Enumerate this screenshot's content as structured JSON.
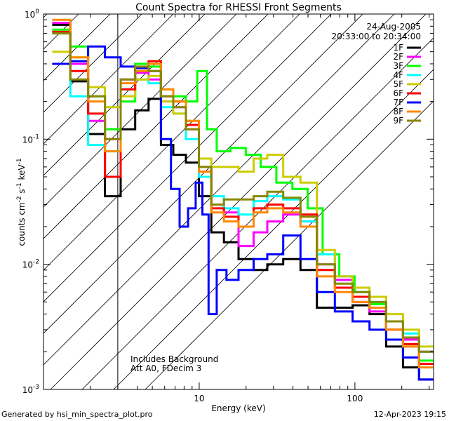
{
  "chart_data": {
    "type": "line",
    "title": "Count Spectra for RHESSI Front Segments",
    "xlabel": "Energy (keV)",
    "ylabel": "counts cm-2 s-1 keV-1",
    "ylabel_parts": {
      "base": "counts cm",
      "e1": "-2",
      "mid1": " s",
      "e2": "-1",
      "mid2": " keV",
      "e3": "-1"
    },
    "xscale": "log",
    "yscale": "log",
    "xlim": [
      1,
      320
    ],
    "ylim": [
      0.001,
      1
    ],
    "x_ticks": [
      {
        "value": 10,
        "label": "10"
      },
      {
        "value": 100,
        "label": "100"
      }
    ],
    "y_ticks": [
      {
        "value": 1,
        "base": "10",
        "exp": "0"
      },
      {
        "value": 0.1,
        "base": "10",
        "exp": "-1"
      },
      {
        "value": 0.01,
        "base": "10",
        "exp": "-2"
      },
      {
        "value": 0.001,
        "base": "10",
        "exp": "-3"
      }
    ],
    "shaded_region_kev": [
      1,
      3
    ],
    "date": "24-Aug-2005",
    "time_range": "20:33:00 to 20:34:00",
    "legend_position": "top-right",
    "annotation_lines": [
      "Includes Background",
      "Att A0, FDecim 3"
    ],
    "series": [
      {
        "name": "1F",
        "color": "#000000",
        "points": [
          [
            1.3,
            0.82
          ],
          [
            1.7,
            0.29
          ],
          [
            2.2,
            0.11
          ],
          [
            2.8,
            0.035
          ],
          [
            3.5,
            0.12
          ],
          [
            4.3,
            0.17
          ],
          [
            5.2,
            0.21
          ],
          [
            6.2,
            0.09
          ],
          [
            7.5,
            0.075
          ],
          [
            9,
            0.065
          ],
          [
            11,
            0.035
          ],
          [
            13,
            0.018
          ],
          [
            16,
            0.015
          ],
          [
            20,
            0.011
          ],
          [
            25,
            0.009
          ],
          [
            30,
            0.01
          ],
          [
            40,
            0.011
          ],
          [
            50,
            0.009
          ],
          [
            65,
            0.0045
          ],
          [
            85,
            0.0045
          ],
          [
            110,
            0.0047
          ],
          [
            140,
            0.004
          ],
          [
            180,
            0.0022
          ],
          [
            230,
            0.0015
          ],
          [
            290,
            0.0012
          ]
        ]
      },
      {
        "name": "2F",
        "color": "#ff00ff",
        "points": [
          [
            1.3,
            0.85
          ],
          [
            1.7,
            0.4
          ],
          [
            2.2,
            0.14
          ],
          [
            2.8,
            0.1
          ],
          [
            3.5,
            0.3
          ],
          [
            4.3,
            0.34
          ],
          [
            5.2,
            0.3
          ],
          [
            6.2,
            0.2
          ],
          [
            7.5,
            0.18
          ],
          [
            9,
            0.12
          ],
          [
            11,
            0.06
          ],
          [
            13,
            0.03
          ],
          [
            16,
            0.026
          ],
          [
            20,
            0.014
          ],
          [
            25,
            0.018
          ],
          [
            30,
            0.022
          ],
          [
            40,
            0.025
          ],
          [
            50,
            0.022
          ],
          [
            65,
            0.01
          ],
          [
            85,
            0.0075
          ],
          [
            110,
            0.005
          ],
          [
            140,
            0.0042
          ],
          [
            180,
            0.003
          ],
          [
            230,
            0.0025
          ],
          [
            290,
            0.002
          ]
        ]
      },
      {
        "name": "3F",
        "color": "#00ff00",
        "points": [
          [
            1.3,
            0.75
          ],
          [
            1.7,
            0.55
          ],
          [
            2.2,
            0.22
          ],
          [
            2.8,
            0.12
          ],
          [
            3.5,
            0.2
          ],
          [
            4.3,
            0.4
          ],
          [
            5.2,
            0.38
          ],
          [
            6.2,
            0.25
          ],
          [
            7.5,
            0.22
          ],
          [
            9,
            0.2
          ],
          [
            10.5,
            0.35
          ],
          [
            12,
            0.12
          ],
          [
            14,
            0.08
          ],
          [
            18,
            0.085
          ],
          [
            22,
            0.075
          ],
          [
            28,
            0.06
          ],
          [
            35,
            0.045
          ],
          [
            45,
            0.04
          ],
          [
            55,
            0.028
          ],
          [
            70,
            0.012
          ],
          [
            90,
            0.008
          ],
          [
            110,
            0.006
          ],
          [
            140,
            0.0048
          ],
          [
            180,
            0.003
          ],
          [
            230,
            0.0022
          ],
          [
            290,
            0.0017
          ]
        ]
      },
      {
        "name": "4F",
        "color": "#00ffff",
        "points": [
          [
            1.3,
            0.7
          ],
          [
            1.7,
            0.22
          ],
          [
            2.2,
            0.09
          ],
          [
            2.8,
            0.08
          ],
          [
            3.5,
            0.25
          ],
          [
            4.3,
            0.3
          ],
          [
            5.2,
            0.28
          ],
          [
            6.2,
            0.18
          ],
          [
            7.5,
            0.16
          ],
          [
            9,
            0.1
          ],
          [
            11,
            0.05
          ],
          [
            13,
            0.035
          ],
          [
            16,
            0.028
          ],
          [
            20,
            0.025
          ],
          [
            25,
            0.032
          ],
          [
            30,
            0.035
          ],
          [
            40,
            0.033
          ],
          [
            50,
            0.022
          ],
          [
            65,
            0.012
          ],
          [
            85,
            0.008
          ],
          [
            110,
            0.006
          ],
          [
            140,
            0.005
          ],
          [
            180,
            0.0035
          ],
          [
            230,
            0.0028
          ],
          [
            290,
            0.002
          ]
        ]
      },
      {
        "name": "5F",
        "color": "#cccc00",
        "points": [
          [
            1.3,
            0.5
          ],
          [
            1.7,
            0.45
          ],
          [
            2.2,
            0.26
          ],
          [
            2.8,
            0.18
          ],
          [
            3.5,
            0.22
          ],
          [
            4.3,
            0.3
          ],
          [
            5.2,
            0.32
          ],
          [
            6.2,
            0.2
          ],
          [
            7.5,
            0.16
          ],
          [
            9,
            0.14
          ],
          [
            11,
            0.07
          ],
          [
            13,
            0.06
          ],
          [
            16,
            0.06
          ],
          [
            20,
            0.055
          ],
          [
            25,
            0.07
          ],
          [
            30,
            0.075
          ],
          [
            40,
            0.05
          ],
          [
            50,
            0.045
          ],
          [
            65,
            0.013
          ],
          [
            85,
            0.008
          ],
          [
            110,
            0.0065
          ],
          [
            140,
            0.0055
          ],
          [
            180,
            0.004
          ],
          [
            230,
            0.003
          ],
          [
            290,
            0.0022
          ]
        ]
      },
      {
        "name": "6F",
        "color": "#ff0000",
        "points": [
          [
            1.3,
            0.72
          ],
          [
            1.7,
            0.35
          ],
          [
            2.2,
            0.16
          ],
          [
            2.8,
            0.05
          ],
          [
            3.5,
            0.25
          ],
          [
            4.3,
            0.35
          ],
          [
            5.2,
            0.42
          ],
          [
            6.2,
            0.22
          ],
          [
            7.5,
            0.2
          ],
          [
            9,
            0.13
          ],
          [
            11,
            0.055
          ],
          [
            13,
            0.028
          ],
          [
            16,
            0.024
          ],
          [
            20,
            0.02
          ],
          [
            25,
            0.028
          ],
          [
            30,
            0.03
          ],
          [
            40,
            0.028
          ],
          [
            50,
            0.025
          ],
          [
            65,
            0.009
          ],
          [
            85,
            0.0065
          ],
          [
            110,
            0.0055
          ],
          [
            140,
            0.0045
          ],
          [
            180,
            0.003
          ],
          [
            230,
            0.0023
          ],
          [
            290,
            0.0016
          ]
        ]
      },
      {
        "name": "7F",
        "color": "#0000ff",
        "points": [
          [
            1.3,
            0.4
          ],
          [
            1.7,
            0.42
          ],
          [
            2.2,
            0.55
          ],
          [
            2.8,
            0.45
          ],
          [
            3.5,
            0.38
          ],
          [
            4.3,
            0.37
          ],
          [
            5.2,
            0.35
          ],
          [
            6.2,
            0.1
          ],
          [
            7,
            0.04
          ],
          [
            8,
            0.02
          ],
          [
            9,
            0.028
          ],
          [
            10,
            0.045
          ],
          [
            11,
            0.025
          ],
          [
            12,
            0.004
          ],
          [
            14,
            0.009
          ],
          [
            16,
            0.0075
          ],
          [
            20,
            0.009
          ],
          [
            25,
            0.011
          ],
          [
            30,
            0.012
          ],
          [
            40,
            0.017
          ],
          [
            50,
            0.011
          ],
          [
            65,
            0.006
          ],
          [
            85,
            0.0042
          ],
          [
            110,
            0.0035
          ],
          [
            140,
            0.003
          ],
          [
            180,
            0.0025
          ],
          [
            230,
            0.0018
          ],
          [
            290,
            0.0012
          ]
        ]
      },
      {
        "name": "8F",
        "color": "#ff8800",
        "points": [
          [
            1.3,
            0.9
          ],
          [
            1.7,
            0.45
          ],
          [
            2.2,
            0.2
          ],
          [
            2.8,
            0.08
          ],
          [
            3.5,
            0.28
          ],
          [
            4.3,
            0.35
          ],
          [
            5.2,
            0.4
          ],
          [
            6.2,
            0.25
          ],
          [
            7.5,
            0.2
          ],
          [
            9,
            0.14
          ],
          [
            11,
            0.055
          ],
          [
            13,
            0.026
          ],
          [
            16,
            0.022
          ],
          [
            20,
            0.02
          ],
          [
            25,
            0.026
          ],
          [
            30,
            0.028
          ],
          [
            40,
            0.026
          ],
          [
            50,
            0.02
          ],
          [
            65,
            0.008
          ],
          [
            85,
            0.006
          ],
          [
            110,
            0.005
          ],
          [
            140,
            0.0045
          ],
          [
            180,
            0.003
          ],
          [
            230,
            0.0022
          ],
          [
            290,
            0.0015
          ]
        ]
      },
      {
        "name": "9F",
        "color": "#888800",
        "points": [
          [
            1.3,
            0.7
          ],
          [
            1.7,
            0.3
          ],
          [
            2.2,
            0.22
          ],
          [
            2.8,
            0.1
          ],
          [
            3.5,
            0.3
          ],
          [
            4.3,
            0.38
          ],
          [
            5.2,
            0.35
          ],
          [
            6.2,
            0.22
          ],
          [
            7.5,
            0.18
          ],
          [
            9,
            0.12
          ],
          [
            11,
            0.06
          ],
          [
            13,
            0.03
          ],
          [
            16,
            0.033
          ],
          [
            20,
            0.033
          ],
          [
            25,
            0.035
          ],
          [
            30,
            0.038
          ],
          [
            40,
            0.034
          ],
          [
            50,
            0.024
          ],
          [
            65,
            0.01
          ],
          [
            85,
            0.007
          ],
          [
            110,
            0.006
          ],
          [
            140,
            0.005
          ],
          [
            180,
            0.0035
          ],
          [
            230,
            0.0026
          ],
          [
            290,
            0.002
          ]
        ]
      }
    ]
  },
  "footer": {
    "generated_by": "Generated by hsi_min_spectra_plot.pro",
    "timestamp": "12-Apr-2023 19:15"
  }
}
